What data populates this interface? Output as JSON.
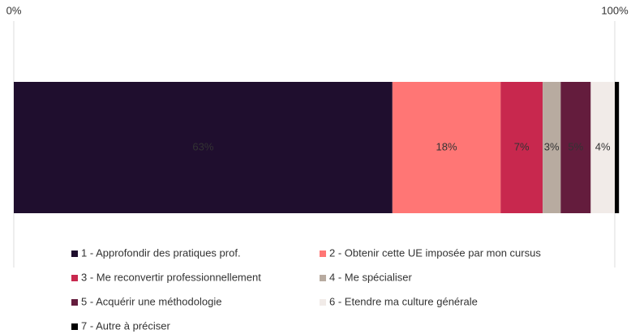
{
  "chart_data": {
    "type": "stacked-bar-horizontal",
    "xlim": [
      0,
      100
    ],
    "xticks": [
      {
        "value": 0,
        "label": "0%"
      },
      {
        "value": 100,
        "label": "100%"
      }
    ],
    "legend": "bottom",
    "series": [
      {
        "name": "1 - Approfondir des pratiques prof.",
        "color": "#1f0e2e",
        "values": [
          63
        ],
        "value_labels": [
          "63%"
        ]
      },
      {
        "name": "2 - Obtenir cette UE imposée par mon cursus",
        "color": "#ff7675",
        "values": [
          18
        ],
        "value_labels": [
          "18%"
        ]
      },
      {
        "name": "3 - Me reconvertir professionnellement",
        "color": "#c8284e",
        "values": [
          7
        ],
        "value_labels": [
          "7%"
        ]
      },
      {
        "name": "4 - Me spécialiser",
        "color": "#b8aba0",
        "values": [
          3
        ],
        "value_labels": [
          "3%"
        ]
      },
      {
        "name": "5 - Acquérir une méthodologie",
        "color": "#641c3d",
        "values": [
          5
        ],
        "value_labels": [
          "5%"
        ]
      },
      {
        "name": "6 - Etendre ma culture générale",
        "color": "#f1ebe8",
        "values": [
          4
        ],
        "value_labels": [
          "4%"
        ]
      },
      {
        "name": "7 - Autre à préciser",
        "color": "#000000",
        "values": [
          0.7
        ],
        "value_labels": [
          null
        ]
      }
    ]
  }
}
